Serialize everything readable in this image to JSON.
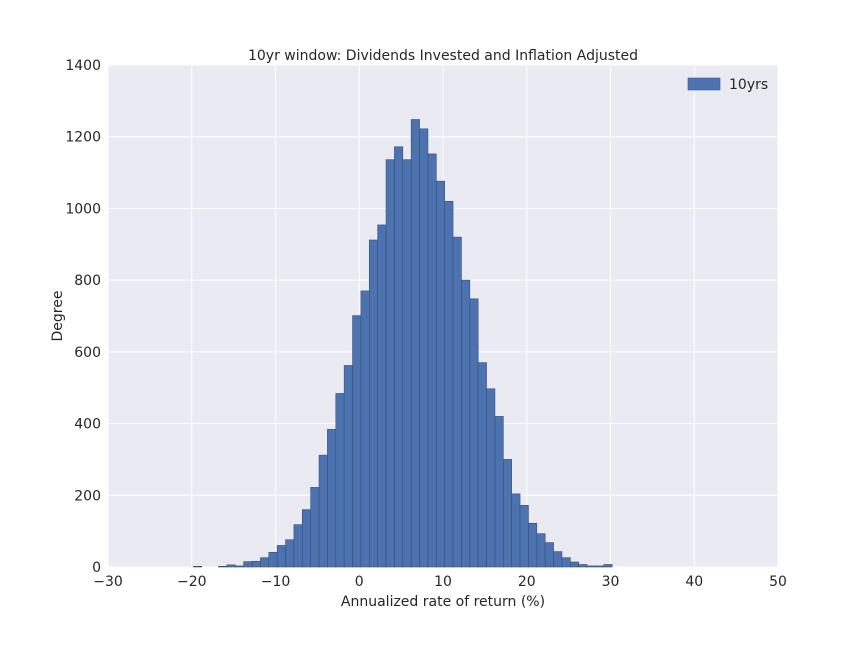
{
  "chart_data": {
    "type": "bar",
    "title": "10yr window: Dividends Invested and Inflation Adjusted",
    "xlabel": "Annualized rate of return (%)",
    "ylabel": "Degree",
    "xlim": [
      -30,
      50
    ],
    "ylim": [
      0,
      1400
    ],
    "xticks": [
      -30,
      -20,
      -10,
      0,
      10,
      20,
      30,
      40,
      50
    ],
    "yticks": [
      0,
      200,
      400,
      600,
      800,
      1000,
      1200,
      1400
    ],
    "xtick_labels": [
      "−30",
      "−20",
      "−10",
      "0",
      "10",
      "20",
      "30",
      "40",
      "50"
    ],
    "ytick_labels": [
      "0",
      "200",
      "400",
      "600",
      "800",
      "1000",
      "1200",
      "1400"
    ],
    "grid": true,
    "legend_position": "top-right",
    "bin_width": 1.0,
    "series": [
      {
        "name": "10yrs",
        "color": "#4c72b0",
        "bins": [
          {
            "x": -19.8,
            "y": 2
          },
          {
            "x": -16.8,
            "y": 2
          },
          {
            "x": -15.8,
            "y": 6
          },
          {
            "x": -14.8,
            "y": 3
          },
          {
            "x": -13.8,
            "y": 15
          },
          {
            "x": -12.8,
            "y": 16
          },
          {
            "x": -11.8,
            "y": 26
          },
          {
            "x": -10.8,
            "y": 41
          },
          {
            "x": -9.8,
            "y": 60
          },
          {
            "x": -8.8,
            "y": 76
          },
          {
            "x": -7.8,
            "y": 118
          },
          {
            "x": -6.8,
            "y": 160
          },
          {
            "x": -5.8,
            "y": 222
          },
          {
            "x": -4.8,
            "y": 312
          },
          {
            "x": -3.8,
            "y": 384
          },
          {
            "x": -2.8,
            "y": 484
          },
          {
            "x": -1.8,
            "y": 562
          },
          {
            "x": -0.8,
            "y": 701
          },
          {
            "x": 0.2,
            "y": 770
          },
          {
            "x": 1.2,
            "y": 912
          },
          {
            "x": 2.2,
            "y": 954
          },
          {
            "x": 3.2,
            "y": 1136
          },
          {
            "x": 4.2,
            "y": 1172
          },
          {
            "x": 5.2,
            "y": 1136
          },
          {
            "x": 6.2,
            "y": 1248
          },
          {
            "x": 7.2,
            "y": 1222
          },
          {
            "x": 8.2,
            "y": 1152
          },
          {
            "x": 9.2,
            "y": 1076
          },
          {
            "x": 10.2,
            "y": 1020
          },
          {
            "x": 11.2,
            "y": 920
          },
          {
            "x": 12.2,
            "y": 800
          },
          {
            "x": 13.2,
            "y": 748
          },
          {
            "x": 14.2,
            "y": 570
          },
          {
            "x": 15.2,
            "y": 497
          },
          {
            "x": 16.2,
            "y": 420
          },
          {
            "x": 17.2,
            "y": 300
          },
          {
            "x": 18.2,
            "y": 204
          },
          {
            "x": 19.2,
            "y": 172
          },
          {
            "x": 20.2,
            "y": 122
          },
          {
            "x": 21.2,
            "y": 93
          },
          {
            "x": 22.2,
            "y": 68
          },
          {
            "x": 23.2,
            "y": 43
          },
          {
            "x": 24.2,
            "y": 26
          },
          {
            "x": 25.2,
            "y": 14
          },
          {
            "x": 26.2,
            "y": 7
          },
          {
            "x": 27.2,
            "y": 3
          },
          {
            "x": 28.2,
            "y": 3
          },
          {
            "x": 29.2,
            "y": 7
          }
        ]
      }
    ]
  }
}
